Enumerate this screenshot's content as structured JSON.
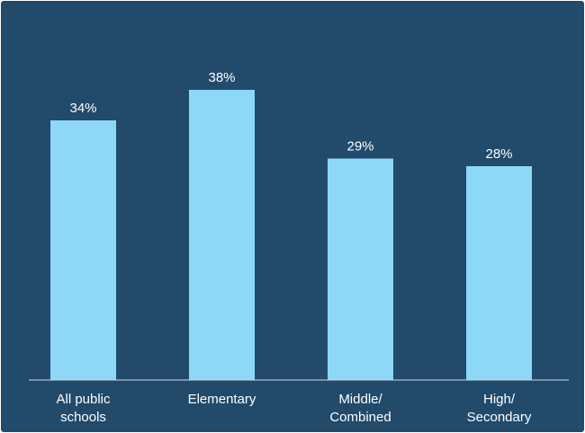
{
  "colors": {
    "background": "#214a6b",
    "bar": "#8dd7f7",
    "text": "#ffffff",
    "axis_line": "#c9dbe7"
  },
  "chart_data": {
    "type": "bar",
    "categories": [
      [
        "All public",
        "schools"
      ],
      [
        "Elementary"
      ],
      [
        "Middle/",
        "Combined"
      ],
      [
        "High/",
        "Secondary"
      ]
    ],
    "values": [
      34,
      38,
      29,
      28
    ],
    "value_labels": [
      "34%",
      "38%",
      "29%",
      "28%"
    ],
    "title": "",
    "xlabel": "",
    "ylabel": "",
    "ylim": [
      0,
      44
    ],
    "grid": false,
    "legend": "none"
  }
}
